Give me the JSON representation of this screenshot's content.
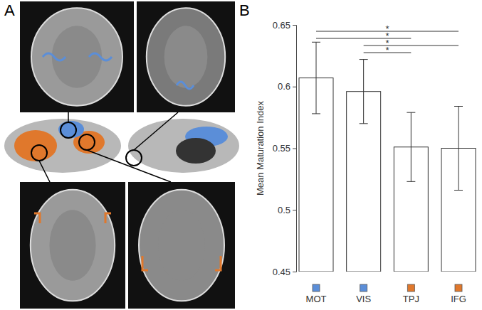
{
  "panels": [
    "A",
    "B"
  ],
  "chart_data": {
    "type": "bar",
    "y_label": "Mean Maturation Index",
    "categories": [
      "MOT",
      "VIS",
      "TPJ",
      "IFG"
    ],
    "values": [
      0.607,
      0.596,
      0.551,
      0.55
    ],
    "errors": [
      0.029,
      0.026,
      0.028,
      0.034
    ],
    "colors": [
      "#5b8ed8",
      "#5b8ed8",
      "#e0782c",
      "#e0782c"
    ],
    "ylim": [
      0.45,
      0.65
    ],
    "yticks": [
      0.45,
      0.5,
      0.55,
      0.6,
      0.65
    ],
    "grid": false,
    "significance": [
      {
        "pair": [
          "MOT",
          "IFG"
        ],
        "label": "*"
      },
      {
        "pair": [
          "MOT",
          "TPJ"
        ],
        "label": "*"
      },
      {
        "pair": [
          "VIS",
          "IFG"
        ],
        "label": "*"
      },
      {
        "pair": [
          "VIS",
          "TPJ"
        ],
        "label": "*"
      }
    ]
  }
}
